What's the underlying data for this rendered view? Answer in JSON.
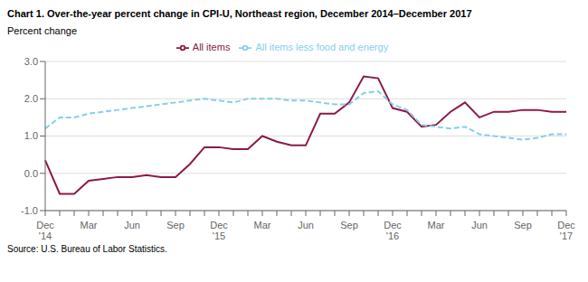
{
  "chart_data": {
    "type": "line",
    "title": "Chart 1. Over-the-year percent change in CPI-U, Northeast region, December 2014–December 2017",
    "y_label": "Percent change",
    "source": "Source: U.S. Bureau of Labor Statistics.",
    "categories": [
      "Dec\n'14",
      null,
      null,
      "Mar",
      null,
      null,
      "Jun",
      null,
      null,
      "Sep",
      null,
      null,
      "Dec\n'15",
      null,
      null,
      "Mar",
      null,
      null,
      "Jun",
      null,
      null,
      "Sep",
      null,
      null,
      "Dec\n'16",
      null,
      null,
      "Mar",
      null,
      null,
      "Jun",
      null,
      null,
      "Sep",
      null,
      null,
      "Dec\n'17"
    ],
    "series": [
      {
        "name": "All items",
        "color": "#8B1A4A",
        "line_style": "solid",
        "values": [
          0.35,
          -0.55,
          -0.55,
          -0.2,
          -0.15,
          -0.1,
          -0.1,
          -0.05,
          -0.1,
          -0.1,
          0.25,
          0.7,
          0.7,
          0.65,
          0.65,
          1.0,
          0.85,
          0.75,
          0.75,
          1.6,
          1.6,
          1.9,
          2.6,
          2.55,
          1.75,
          1.65,
          1.25,
          1.3,
          1.65,
          1.9,
          1.5,
          1.65,
          1.65,
          1.7,
          1.7,
          1.65,
          1.65
        ]
      },
      {
        "name": "All items less food and energy",
        "color": "#87CEEB",
        "line_style": "dashed",
        "values": [
          1.2,
          1.5,
          1.5,
          1.6,
          1.65,
          1.7,
          1.75,
          1.8,
          1.85,
          1.9,
          1.95,
          2.0,
          1.95,
          1.9,
          2.0,
          2.0,
          2.0,
          1.95,
          1.95,
          1.9,
          1.85,
          1.85,
          2.15,
          2.2,
          1.85,
          1.7,
          1.3,
          1.25,
          1.2,
          1.25,
          1.05,
          1.0,
          0.95,
          0.9,
          0.95,
          1.05,
          1.05
        ]
      }
    ],
    "ylim": [
      -1.0,
      3.0
    ],
    "yticks": [
      {
        "value": -1.0,
        "label": "-1.0"
      },
      {
        "value": 0.0,
        "label": "0.0"
      },
      {
        "value": 1.0,
        "label": "1.0"
      },
      {
        "value": 2.0,
        "label": "2.0"
      },
      {
        "value": 3.0,
        "label": "3.0"
      }
    ],
    "grid": true,
    "legend": "top"
  }
}
